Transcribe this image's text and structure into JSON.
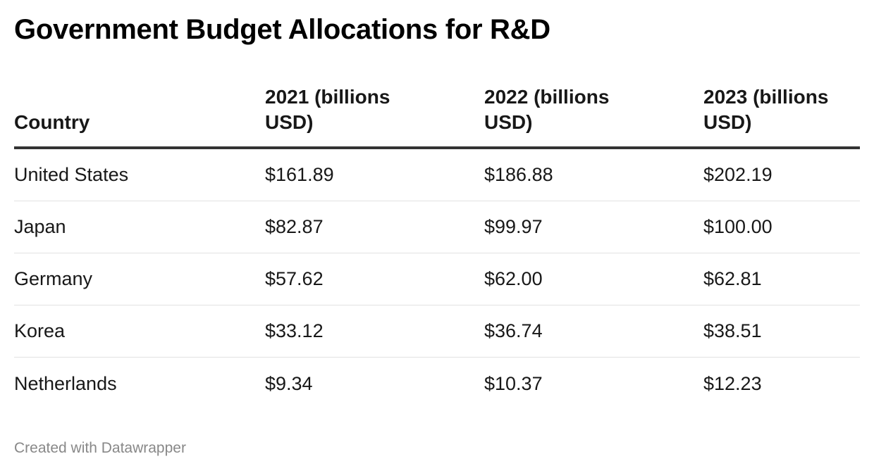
{
  "title": "Government Budget Allocations for R&D",
  "footer": "Created with Datawrapper",
  "chart_data": {
    "type": "table",
    "title": "Government Budget Allocations for R&D",
    "columns": [
      "Country",
      "2021 (billions USD)",
      "2022 (billions USD)",
      "2023 (billions USD)"
    ],
    "rows": [
      [
        "United States",
        "$161.89",
        "$186.88",
        "$202.19"
      ],
      [
        "Japan",
        "$82.87",
        "$99.97",
        "$100.00"
      ],
      [
        "Germany",
        "$57.62",
        "$62.00",
        "$62.81"
      ],
      [
        "Korea",
        "$33.12",
        "$36.74",
        "$38.51"
      ],
      [
        "Netherlands",
        "$9.34",
        "$10.37",
        "$12.23"
      ]
    ]
  }
}
